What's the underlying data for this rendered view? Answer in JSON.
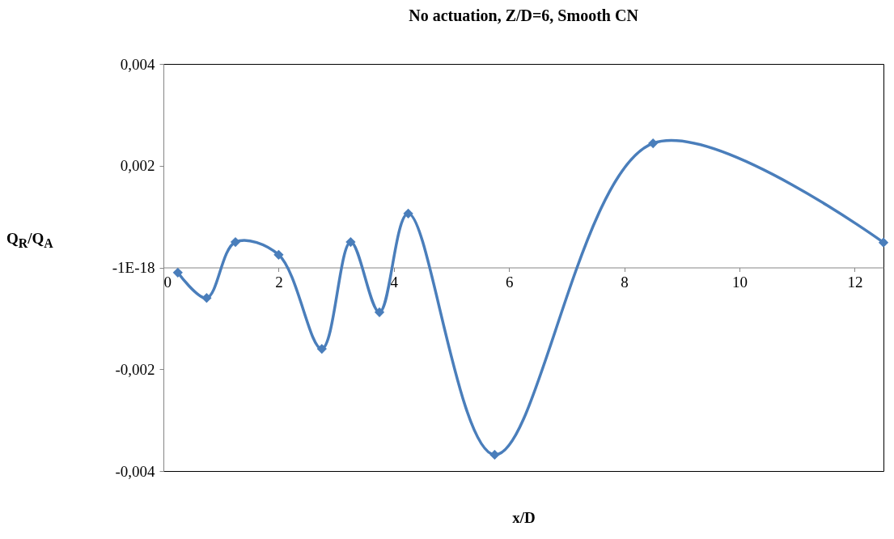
{
  "chart_data": {
    "type": "line",
    "title": "No actuation, Z/D=6, Smooth CN",
    "xlabel": "x/D",
    "ylabel": "Q$_{R}$/Q$_{A}$",
    "x": [
      0.25,
      0.75,
      1.25,
      2,
      2.75,
      3.25,
      3.75,
      4.25,
      5.75,
      8.5,
      12.5
    ],
    "series": [
      {
        "color": "#4a7ebb",
        "values": [
          -0.0001,
          -0.0006,
          0.0005,
          0.00025,
          -0.0016,
          0.0005,
          -0.00088,
          0.00106,
          -0.00368,
          0.00244,
          0.00049
        ]
      }
    ],
    "xlim": [
      0,
      12.5
    ],
    "xticks": [
      0,
      2,
      4,
      6,
      8,
      10,
      12
    ],
    "ylim": [
      -0.004,
      0.004
    ],
    "yticks": [
      {
        "value": -0.004,
        "label": "-0,004"
      },
      {
        "value": -0.002,
        "label": "-0,002"
      },
      {
        "value": 0,
        "label": "-1E-18"
      },
      {
        "value": 0.002,
        "label": "0,002"
      },
      {
        "value": 0.004,
        "label": "0,004"
      }
    ],
    "grid": false,
    "marker": "diamond",
    "line_style": "solid"
  }
}
